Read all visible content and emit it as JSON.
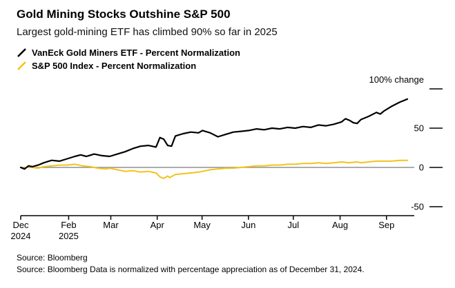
{
  "header": {
    "title": "Gold Mining Stocks Outshine S&P 500",
    "subtitle": "Largest gold-mining ETF has climbed 90% so far in 2025"
  },
  "legend": [
    {
      "label": "VanEck Gold Miners ETF - Percent Normalization",
      "color": "#000000"
    },
    {
      "label": "S&P 500 Index - Percent Normalization",
      "color": "#F3C317"
    }
  ],
  "footer": {
    "line1": "Source: Bloomberg",
    "line2": "Source: Bloomberg Data is normalized with percentage appreciation as of December 31, 2024."
  },
  "chart_data": {
    "type": "line",
    "title": "Gold Mining Stocks Outshine S&P 500",
    "subtitle": "Largest gold-mining ETF has climbed 90% so far in 2025",
    "legend_position": "top-left",
    "grid": "zero-line-only",
    "y_axis": {
      "top_label": "100% change",
      "ticks": [
        100,
        50,
        0,
        -50
      ],
      "ylim": [
        -65,
        110
      ],
      "zero_gridline_color": "#8f8f8f"
    },
    "x_axis": {
      "note": "t is fraction of timeline Dec 31 2024 to mid Sep 2025",
      "months": [
        {
          "label": "Dec",
          "sublabel": "2024",
          "t": 0.0
        },
        {
          "label": "Feb",
          "sublabel": "2025",
          "t": 0.124
        },
        {
          "label": "Mar",
          "t": 0.233
        },
        {
          "label": "Apr",
          "t": 0.353
        },
        {
          "label": "May",
          "t": 0.469
        },
        {
          "label": "Jun",
          "t": 0.589
        },
        {
          "label": "Jul",
          "t": 0.705
        },
        {
          "label": "Aug",
          "t": 0.826
        },
        {
          "label": "Sep",
          "t": 0.946
        }
      ]
    },
    "series": [
      {
        "name": "VanEck Gold Miners ETF - Percent Normalization",
        "color": "#000000",
        "points": [
          [
            0,
            0
          ],
          [
            0.01,
            -2
          ],
          [
            0.02,
            2
          ],
          [
            0.03,
            1
          ],
          [
            0.045,
            3
          ],
          [
            0.06,
            6
          ],
          [
            0.08,
            9
          ],
          [
            0.1,
            8
          ],
          [
            0.12,
            11
          ],
          [
            0.14,
            14
          ],
          [
            0.155,
            16
          ],
          [
            0.17,
            14
          ],
          [
            0.19,
            17
          ],
          [
            0.21,
            15
          ],
          [
            0.23,
            14
          ],
          [
            0.25,
            17
          ],
          [
            0.27,
            20
          ],
          [
            0.29,
            24
          ],
          [
            0.31,
            27
          ],
          [
            0.33,
            28
          ],
          [
            0.35,
            26
          ],
          [
            0.36,
            38
          ],
          [
            0.37,
            36
          ],
          [
            0.38,
            28
          ],
          [
            0.39,
            27
          ],
          [
            0.4,
            40
          ],
          [
            0.42,
            43
          ],
          [
            0.44,
            45
          ],
          [
            0.46,
            44
          ],
          [
            0.47,
            47
          ],
          [
            0.49,
            44
          ],
          [
            0.51,
            39
          ],
          [
            0.53,
            42
          ],
          [
            0.55,
            45
          ],
          [
            0.57,
            46
          ],
          [
            0.59,
            47
          ],
          [
            0.61,
            49
          ],
          [
            0.63,
            48
          ],
          [
            0.65,
            50
          ],
          [
            0.67,
            49
          ],
          [
            0.69,
            51
          ],
          [
            0.71,
            50
          ],
          [
            0.73,
            52
          ],
          [
            0.75,
            51
          ],
          [
            0.77,
            54
          ],
          [
            0.79,
            53
          ],
          [
            0.81,
            55
          ],
          [
            0.83,
            58
          ],
          [
            0.84,
            62
          ],
          [
            0.85,
            60
          ],
          [
            0.86,
            57
          ],
          [
            0.87,
            56
          ],
          [
            0.88,
            61
          ],
          [
            0.9,
            65
          ],
          [
            0.92,
            70
          ],
          [
            0.93,
            68
          ],
          [
            0.94,
            72
          ],
          [
            0.96,
            78
          ],
          [
            0.98,
            83
          ],
          [
            1.0,
            87
          ]
        ]
      },
      {
        "name": "S&P 500 Index - Percent Normalization",
        "color": "#F3C317",
        "points": [
          [
            0,
            0
          ],
          [
            0.01,
            -1
          ],
          [
            0.02,
            1
          ],
          [
            0.03,
            0
          ],
          [
            0.045,
            -1
          ],
          [
            0.06,
            1
          ],
          [
            0.08,
            2
          ],
          [
            0.1,
            3
          ],
          [
            0.12,
            3
          ],
          [
            0.14,
            4
          ],
          [
            0.16,
            2
          ],
          [
            0.18,
            1
          ],
          [
            0.2,
            -1
          ],
          [
            0.22,
            -2
          ],
          [
            0.23,
            -1
          ],
          [
            0.25,
            -3
          ],
          [
            0.27,
            -5
          ],
          [
            0.29,
            -4
          ],
          [
            0.31,
            -6
          ],
          [
            0.33,
            -5
          ],
          [
            0.35,
            -7
          ],
          [
            0.36,
            -12
          ],
          [
            0.37,
            -14
          ],
          [
            0.38,
            -11
          ],
          [
            0.385,
            -13
          ],
          [
            0.4,
            -9
          ],
          [
            0.42,
            -8
          ],
          [
            0.44,
            -7
          ],
          [
            0.46,
            -6
          ],
          [
            0.47,
            -5
          ],
          [
            0.49,
            -3
          ],
          [
            0.51,
            -2
          ],
          [
            0.53,
            -1
          ],
          [
            0.55,
            -1
          ],
          [
            0.57,
            0
          ],
          [
            0.59,
            1
          ],
          [
            0.61,
            2
          ],
          [
            0.63,
            2
          ],
          [
            0.65,
            3
          ],
          [
            0.67,
            3
          ],
          [
            0.69,
            4
          ],
          [
            0.71,
            4
          ],
          [
            0.73,
            5
          ],
          [
            0.75,
            5
          ],
          [
            0.77,
            6
          ],
          [
            0.79,
            5
          ],
          [
            0.81,
            6
          ],
          [
            0.83,
            7
          ],
          [
            0.85,
            6
          ],
          [
            0.87,
            7
          ],
          [
            0.88,
            6
          ],
          [
            0.9,
            7
          ],
          [
            0.92,
            8
          ],
          [
            0.94,
            8
          ],
          [
            0.96,
            8
          ],
          [
            0.98,
            9
          ],
          [
            1.0,
            9
          ]
        ]
      }
    ]
  }
}
